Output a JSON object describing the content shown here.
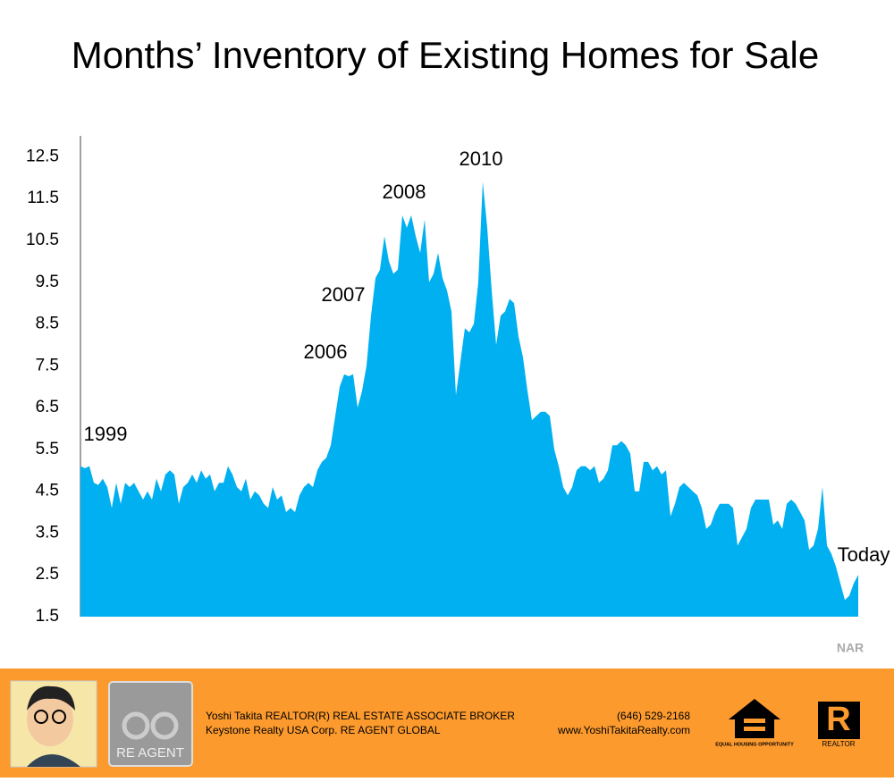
{
  "chart_data": {
    "type": "area",
    "title": "Months’ Inventory of Existing Homes for Sale",
    "color": "#00b0f0",
    "grid": false,
    "ylim": [
      1.5,
      13
    ],
    "yticks": [
      1.5,
      2.5,
      3.5,
      4.5,
      5.5,
      6.5,
      7.5,
      8.5,
      9.5,
      10.5,
      11.5,
      12.5
    ],
    "values": [
      5.1,
      5.05,
      5.1,
      4.7,
      4.65,
      4.8,
      4.6,
      4.1,
      4.7,
      4.2,
      4.7,
      4.6,
      4.7,
      4.5,
      4.3,
      4.5,
      4.3,
      4.8,
      4.5,
      4.9,
      5.0,
      4.9,
      4.2,
      4.6,
      4.7,
      4.9,
      4.7,
      5.0,
      4.8,
      4.9,
      4.5,
      4.7,
      4.7,
      5.1,
      4.9,
      4.6,
      4.5,
      4.8,
      4.3,
      4.5,
      4.4,
      4.2,
      4.1,
      4.6,
      4.3,
      4.4,
      4.0,
      4.1,
      4.0,
      4.4,
      4.6,
      4.7,
      4.6,
      5.0,
      5.2,
      5.3,
      5.6,
      6.3,
      7.0,
      7.3,
      7.25,
      7.3,
      6.5,
      6.9,
      7.5,
      8.7,
      9.6,
      9.8,
      10.6,
      10.0,
      9.7,
      9.8,
      11.1,
      10.8,
      11.1,
      10.6,
      10.2,
      11.0,
      9.5,
      9.7,
      10.2,
      9.6,
      9.3,
      8.8,
      6.8,
      7.6,
      8.4,
      8.3,
      8.5,
      9.5,
      11.9,
      10.8,
      9.3,
      8.0,
      8.7,
      8.8,
      9.1,
      9.0,
      8.2,
      7.7,
      6.9,
      6.2,
      6.3,
      6.4,
      6.4,
      6.3,
      5.5,
      5.1,
      4.6,
      4.4,
      4.6,
      5.0,
      5.1,
      5.1,
      5.0,
      5.1,
      4.7,
      4.8,
      5.0,
      5.6,
      5.6,
      5.7,
      5.6,
      5.4,
      4.5,
      4.5,
      5.2,
      5.2,
      5.0,
      5.1,
      4.9,
      5.0,
      3.9,
      4.2,
      4.6,
      4.7,
      4.6,
      4.5,
      4.4,
      4.1,
      3.6,
      3.7,
      4.0,
      4.2,
      4.2,
      4.2,
      4.1,
      3.2,
      3.4,
      3.6,
      4.1,
      4.3,
      4.3,
      4.3,
      4.3,
      3.7,
      3.8,
      3.6,
      4.2,
      4.3,
      4.2,
      4.0,
      3.8,
      3.1,
      3.2,
      3.6,
      4.6,
      3.2,
      3.0,
      2.7,
      2.3,
      1.9,
      2.0,
      2.3,
      2.5
    ],
    "annotations": [
      "1999",
      "2006",
      "2007",
      "2008",
      "2010",
      "Today"
    ],
    "source": "NAR"
  },
  "footer": {
    "name_line": "Yoshi Takita REALTOR(R) REAL ESTATE ASSOCIATE BROKER",
    "company_line": "Keystone Realty USA Corp.  RE AGENT GLOBAL",
    "phone": "(646) 529-2168",
    "website": "www.YoshiTakitaRealty.com",
    "re_agent_logo": "RE AGENT",
    "equal_housing_logo": "EQUAL HOUSING OPPORTUNITY",
    "realtor_letter": "R",
    "realtor_logo": "REALTOR"
  }
}
